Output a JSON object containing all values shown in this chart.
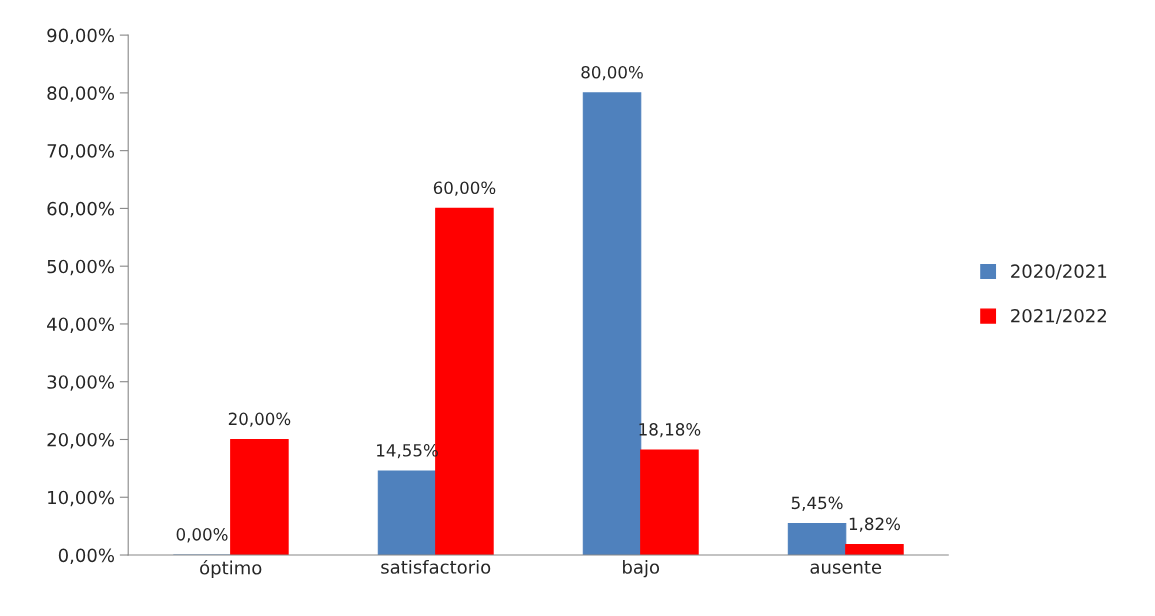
{
  "chart_data": {
    "type": "bar",
    "categories": [
      "óptimo",
      "satisfactorio",
      "bajo",
      "ausente"
    ],
    "series": [
      {
        "name": "2020/2021",
        "color": "#4f81bd",
        "values": [
          0,
          14.55,
          80,
          5.45
        ],
        "value_labels": [
          "0,00%",
          "14,55%",
          "80,00%",
          "5,45%"
        ]
      },
      {
        "name": "2021/2022",
        "color": "#ff0000",
        "values": [
          20,
          60,
          18.18,
          1.82
        ],
        "value_labels": [
          "20,00%",
          "60,00%",
          "18,18%",
          "1,82%"
        ]
      }
    ],
    "ylim": [
      0,
      90
    ],
    "yticks": [
      {
        "value": 0,
        "label": "0,00%"
      },
      {
        "value": 10,
        "label": "10,00%"
      },
      {
        "value": 20,
        "label": "20,00%"
      },
      {
        "value": 30,
        "label": "30,00%"
      },
      {
        "value": 40,
        "label": "40,00%"
      },
      {
        "value": 50,
        "label": "50,00%"
      },
      {
        "value": 60,
        "label": "60,00%"
      },
      {
        "value": 70,
        "label": "70,00%"
      },
      {
        "value": 80,
        "label": "80,00%"
      },
      {
        "value": 90,
        "label": "90,00%"
      }
    ],
    "grid": false,
    "legend": "right"
  }
}
